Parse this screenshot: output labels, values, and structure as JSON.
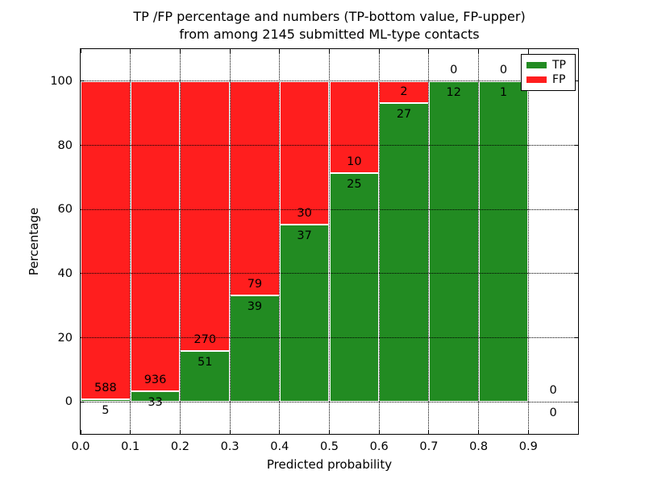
{
  "figure": {
    "title_line1": "TP /FP percentage and numbers (TP-bottom value, FP-upper)",
    "title_line2": "from among 2145 submitted ML-type contacts",
    "xlabel": "Predicted probability",
    "ylabel": "Percentage",
    "background": "#ffffff",
    "text_color": "#000000"
  },
  "chart_data": {
    "type": "bar",
    "stacked": true,
    "title": "TP /FP percentage and numbers (TP-bottom value, FP-upper)\nfrom among 2145 submitted ML-type contacts",
    "xlabel": "Predicted probability",
    "ylabel": "Percentage",
    "total_contacts": 2145,
    "categories": [
      "0.0-0.1",
      "0.1-0.2",
      "0.2-0.3",
      "0.3-0.4",
      "0.4-0.5",
      "0.5-0.6",
      "0.6-0.7",
      "0.7-0.8",
      "0.8-0.9",
      "0.9-1.0"
    ],
    "bin_width": 0.1,
    "series": [
      {
        "name": "TP",
        "color": "#228B22",
        "counts": [
          5,
          33,
          51,
          39,
          37,
          25,
          27,
          12,
          1,
          0
        ],
        "percent": [
          0.8,
          3.4,
          15.9,
          33.1,
          55.2,
          71.4,
          93.1,
          100,
          100,
          0
        ]
      },
      {
        "name": "FP",
        "color": "#ff1e1e",
        "counts": [
          588,
          936,
          270,
          79,
          30,
          10,
          2,
          0,
          0,
          0
        ],
        "percent": [
          99.2,
          96.6,
          84.1,
          66.9,
          44.8,
          28.6,
          6.9,
          0,
          0,
          0
        ]
      }
    ],
    "xticks": [
      "0.0",
      "0.1",
      "0.2",
      "0.3",
      "0.4",
      "0.5",
      "0.6",
      "0.7",
      "0.8",
      "0.9"
    ],
    "yticks": [
      0,
      20,
      40,
      60,
      80,
      100
    ],
    "xlim": [
      0,
      1.0
    ],
    "ylim": [
      -10,
      110
    ],
    "grid": true,
    "grid_style": "dotted",
    "bar_edge_color": "#ffffff",
    "legend": {
      "position": "upper right",
      "entries": [
        {
          "label": "TP",
          "color": "#228B22"
        },
        {
          "label": "FP",
          "color": "#ff1e1e"
        }
      ]
    }
  }
}
